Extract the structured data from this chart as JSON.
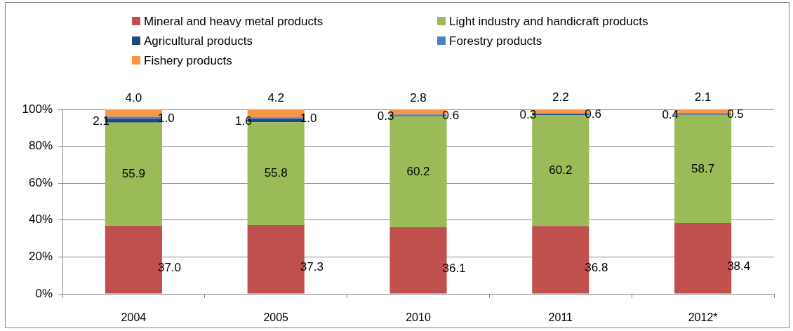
{
  "chart_data": {
    "type": "bar",
    "stacked": true,
    "categories": [
      "2004",
      "2005",
      "2010",
      "2011",
      "2012*"
    ],
    "series": [
      {
        "name": "Mineral and heavy metal products",
        "color": "#c0504d",
        "values": [
          37.0,
          37.3,
          36.1,
          36.8,
          38.4
        ],
        "value_labels": [
          "37.0",
          "37.3",
          "36.1",
          "36.8",
          "38.4"
        ]
      },
      {
        "name": "Light industry and handicraft products",
        "color": "#9bbb59",
        "values": [
          55.9,
          55.8,
          60.2,
          60.2,
          58.7
        ],
        "value_labels": [
          "55.9",
          "55.8",
          "60.2",
          "60.2",
          "58.7"
        ]
      },
      {
        "name": "Agricultural products",
        "color": "#1f497d",
        "values": [
          2.1,
          1.6,
          0.3,
          0.3,
          0.4
        ],
        "value_labels": [
          "2.1",
          "1.6",
          "0.3",
          "0.3",
          "0.4"
        ]
      },
      {
        "name": "Forestry products",
        "color": "#4f81bd",
        "values": [
          1.0,
          1.0,
          0.6,
          0.6,
          0.5
        ],
        "value_labels": [
          "1.0",
          "1.0",
          "0.6",
          "0.6",
          "0.5"
        ]
      },
      {
        "name": "Fishery products",
        "color": "#f79646",
        "values": [
          4.0,
          4.2,
          2.8,
          2.2,
          2.1
        ],
        "value_labels": [
          "4.0",
          "4.2",
          "2.8",
          "2.2",
          "2.1"
        ]
      }
    ],
    "ylim": [
      0,
      100
    ],
    "yticks": [
      {
        "value": 0,
        "label": "0%"
      },
      {
        "value": 20,
        "label": "20%"
      },
      {
        "value": 40,
        "label": "40%"
      },
      {
        "value": 60,
        "label": "60%"
      },
      {
        "value": 80,
        "label": "80%"
      },
      {
        "value": 100,
        "label": "100%"
      }
    ],
    "grid": "y",
    "legend": "top"
  }
}
